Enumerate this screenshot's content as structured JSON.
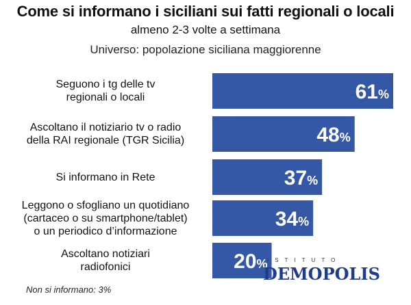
{
  "title": "Come si informano i siciliani sui fatti regionali o locali",
  "subtitle": "almeno 2-3 volte a settimana",
  "universe": "Universo: popolazione siciliana maggiorenne",
  "footnote": "Non si informano: 3%",
  "logo": {
    "top": "ISTITUTO",
    "main": "DEMOPOLIS"
  },
  "colors": {
    "bar": "#3558a6",
    "value_text": "#ffffff",
    "logo": "#1f3c88"
  },
  "chart_data": {
    "type": "bar",
    "orientation": "horizontal",
    "categories": [
      [
        "Seguono i tg delle tv",
        "regionali o locali"
      ],
      [
        "Ascoltano il notiziario tv o radio",
        "della RAI regionale (TGR Sicilia)"
      ],
      [
        "Si informano in Rete"
      ],
      [
        "Leggono o sfogliano un quotidiano",
        "(cartaceo o su smartphone/tablet)",
        "o un periodico d’informazione"
      ],
      [
        "Ascoltano notiziari",
        "radiofonici"
      ]
    ],
    "values": [
      61,
      48,
      37,
      34,
      20
    ],
    "value_labels": [
      "61",
      "48",
      "37",
      "34",
      "20"
    ],
    "unit": "%",
    "xlim": [
      0,
      61
    ]
  }
}
